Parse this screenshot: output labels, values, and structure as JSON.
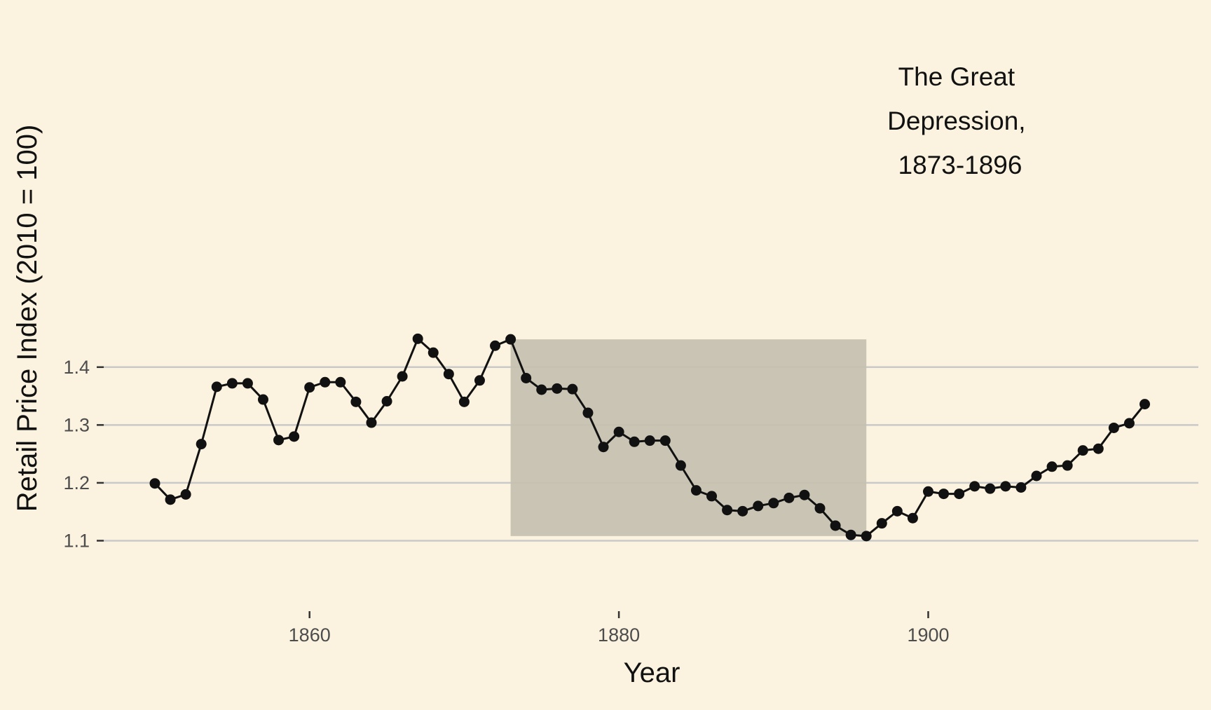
{
  "chart_data": {
    "type": "line",
    "xlabel": "Year",
    "ylabel": "Retail Price Index (2010 = 100)",
    "xlim": [
      1845.5,
      1917
    ],
    "ylim": [
      1.095,
      1.455
    ],
    "x_ticks": [
      1860,
      1880,
      1900
    ],
    "y_ticks": [
      1.1,
      1.2,
      1.3,
      1.4
    ],
    "x_tick_labels": [
      "1860",
      "1880",
      "1900"
    ],
    "y_tick_labels": [
      "1.1",
      "1.2",
      "1.3",
      "1.4"
    ],
    "grid": true,
    "series": [
      {
        "x": [
          1850,
          1851,
          1852,
          1853,
          1854,
          1855,
          1856,
          1857,
          1858,
          1859,
          1860,
          1861,
          1862,
          1863,
          1864,
          1865,
          1866,
          1867,
          1868,
          1869,
          1870,
          1871,
          1872,
          1873,
          1874,
          1875,
          1876,
          1877,
          1878,
          1879,
          1880,
          1881,
          1882,
          1883,
          1884,
          1885,
          1886,
          1887,
          1888,
          1889,
          1890,
          1891,
          1892,
          1893,
          1894,
          1895,
          1896,
          1897,
          1898,
          1899,
          1900,
          1901,
          1902,
          1903,
          1904,
          1905,
          1906,
          1907,
          1908,
          1909,
          1910,
          1911,
          1912,
          1913,
          1914
        ],
        "values": [
          1.199,
          1.171,
          1.18,
          1.267,
          1.366,
          1.372,
          1.372,
          1.344,
          1.274,
          1.28,
          1.365,
          1.374,
          1.374,
          1.34,
          1.304,
          1.341,
          1.384,
          1.449,
          1.425,
          1.388,
          1.34,
          1.377,
          1.437,
          1.448,
          1.381,
          1.361,
          1.363,
          1.362,
          1.321,
          1.262,
          1.288,
          1.271,
          1.273,
          1.273,
          1.23,
          1.187,
          1.177,
          1.153,
          1.151,
          1.16,
          1.165,
          1.174,
          1.179,
          1.156,
          1.126,
          1.11,
          1.108,
          1.13,
          1.151,
          1.139,
          1.185,
          1.181,
          1.181,
          1.194,
          1.19,
          1.194,
          1.192,
          1.212,
          1.228,
          1.23,
          1.256,
          1.259,
          1.295,
          1.303,
          1.336
        ],
        "color": "#111111"
      }
    ],
    "shaded_region": {
      "x_range": [
        1873,
        1896
      ],
      "y_range": [
        1.108,
        1.448
      ],
      "color": "#c6c1b0"
    },
    "annotation": {
      "lines": [
        "The Great",
        "Depression,",
        "1873-1896"
      ]
    },
    "colors": {
      "background": "#fbf3df",
      "grid": "#c9c9c9",
      "line": "#111111",
      "shade": "#c6c1b0"
    }
  }
}
